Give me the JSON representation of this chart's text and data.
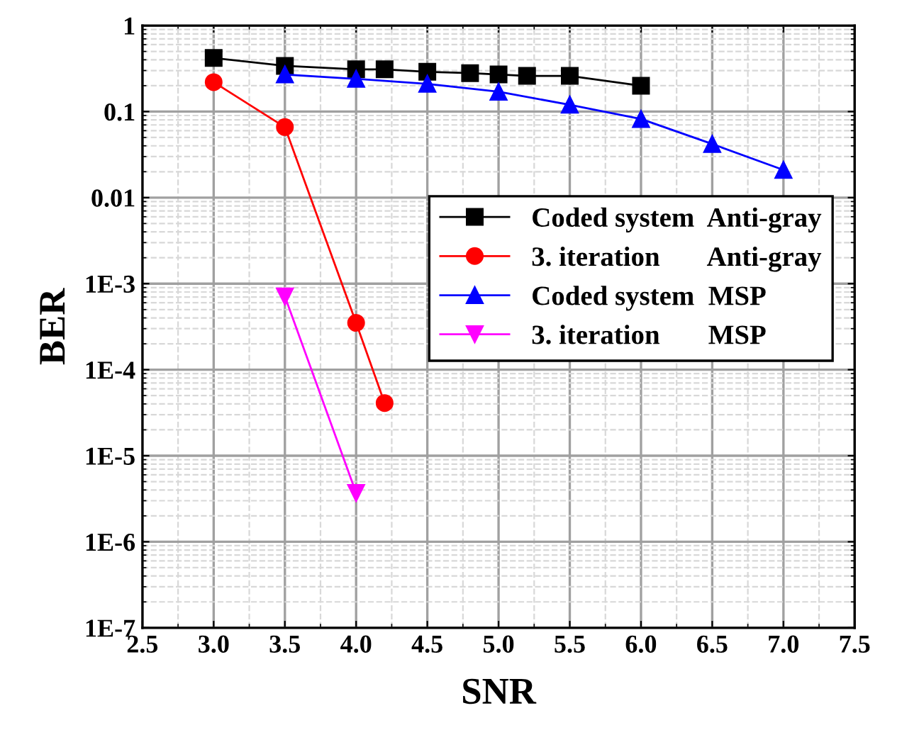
{
  "chart_data": {
    "type": "line",
    "xlabel": "SNR",
    "ylabel": "BER",
    "log": "y",
    "xlim": [
      2.5,
      7.5
    ],
    "xticks": [
      {
        "value": 2.5,
        "label": "2.5"
      },
      {
        "value": 3.0,
        "label": "3.0"
      },
      {
        "value": 3.5,
        "label": "3.5"
      },
      {
        "value": 4.0,
        "label": "4.0"
      },
      {
        "value": 4.5,
        "label": "4.5"
      },
      {
        "value": 5.0,
        "label": "5.0"
      },
      {
        "value": 5.5,
        "label": "5.5"
      },
      {
        "value": 6.0,
        "label": "6.0"
      },
      {
        "value": 6.5,
        "label": "6.5"
      },
      {
        "value": 7.0,
        "label": "7.0"
      },
      {
        "value": 7.5,
        "label": "7.5"
      }
    ],
    "ylim": [
      1e-07,
      1
    ],
    "yticks": [
      {
        "value": 1e-07,
        "label": "1E-7"
      },
      {
        "value": 1e-06,
        "label": "1E-6"
      },
      {
        "value": 1e-05,
        "label": "1E-5"
      },
      {
        "value": 0.0001,
        "label": "1E-4"
      },
      {
        "value": 0.001,
        "label": "1E-3"
      },
      0.01,
      0.1,
      1
    ],
    "grid": true,
    "legend": "right",
    "line_style": "solid",
    "series": [
      {
        "name": "Coded system  Anti-gray",
        "color": "#000000",
        "marker": "square",
        "x": [
          3.0,
          3.5,
          4.0,
          4.2,
          4.5,
          4.8,
          5.0,
          5.2,
          5.5,
          6.0
        ],
        "values": [
          0.42,
          0.34,
          0.31,
          0.31,
          0.29,
          0.28,
          0.27,
          0.26,
          0.26,
          0.2
        ]
      },
      {
        "name": "3. iteration       Anti-gray",
        "color": "#ff0000",
        "marker": "circle",
        "x": [
          3.0,
          3.5,
          4.0,
          4.2
        ],
        "values": [
          0.22,
          0.066,
          0.00035,
          4.1e-05
        ]
      },
      {
        "name": "Coded system  MSP",
        "color": "#0000ff",
        "marker": "triangle",
        "x": [
          3.5,
          4.0,
          4.5,
          5.0,
          5.5,
          6.0,
          6.5,
          7.0
        ],
        "values": [
          0.27,
          0.24,
          0.21,
          0.17,
          0.12,
          0.082,
          0.042,
          0.021
        ]
      },
      {
        "name": "3. iteration       MSP",
        "color": "#ff00ff",
        "marker": "triangle_down",
        "x": [
          3.5,
          4.0
        ],
        "values": [
          0.00071,
          3.7e-06
        ]
      }
    ]
  }
}
